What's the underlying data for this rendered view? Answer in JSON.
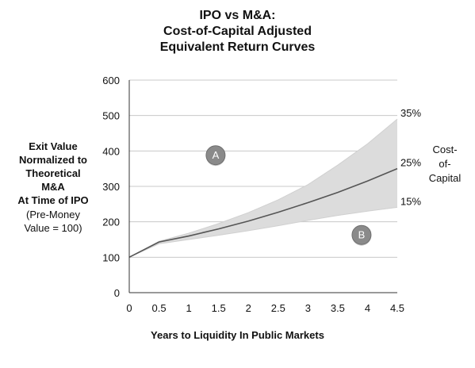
{
  "chart_data": {
    "type": "line",
    "title": [
      "IPO vs M&A:",
      "Cost-of-Capital Adjusted",
      "Equivalent Return Curves"
    ],
    "ylabel_bold": [
      "Exit Value",
      "Normalized to",
      "Theoretical",
      "M&A",
      "At Time of IPO"
    ],
    "ylabel_normal": [
      "(Pre-Money",
      "Value = 100)"
    ],
    "xlabel": "Years to Liquidity In Public Markets",
    "right_label": [
      "Cost-",
      "of-",
      "Capital"
    ],
    "xlim": [
      0,
      4.5
    ],
    "ylim": [
      0,
      600
    ],
    "x_ticks": [
      "0",
      "0.5",
      "1",
      "1.5",
      "2",
      "2.5",
      "3",
      "3.5",
      "4",
      "4.5"
    ],
    "y_ticks": [
      "0",
      "100",
      "200",
      "300",
      "400",
      "500",
      "600"
    ],
    "grid": true,
    "series": [
      {
        "name": "35%",
        "x": [
          0,
          0.5,
          1,
          1.5,
          2,
          2.5,
          3,
          3.5,
          4,
          4.5
        ],
        "values": [
          100,
          145,
          168,
          195,
          226,
          262,
          305,
          360,
          420,
          490
        ],
        "role": "band-upper"
      },
      {
        "name": "25%",
        "x": [
          0,
          0.5,
          1,
          1.5,
          2,
          2.5,
          3,
          3.5,
          4,
          4.5
        ],
        "values": [
          100,
          143,
          160,
          180,
          202,
          227,
          254,
          283,
          315,
          350
        ],
        "role": "line"
      },
      {
        "name": "15%",
        "x": [
          0,
          0.5,
          1,
          1.5,
          2,
          2.5,
          3,
          3.5,
          4,
          4.5
        ],
        "values": [
          100,
          138,
          150,
          162,
          175,
          189,
          204,
          218,
          230,
          241
        ],
        "role": "band-lower"
      }
    ],
    "annotations": [
      {
        "text": "A",
        "x": 1.45,
        "y": 388
      },
      {
        "text": "B",
        "x": 3.9,
        "y": 163
      }
    ],
    "colors": {
      "band": "#dcdcdc",
      "line": "#555555",
      "grid": "#c8c8c8",
      "marker": "#8a8a8a"
    }
  }
}
